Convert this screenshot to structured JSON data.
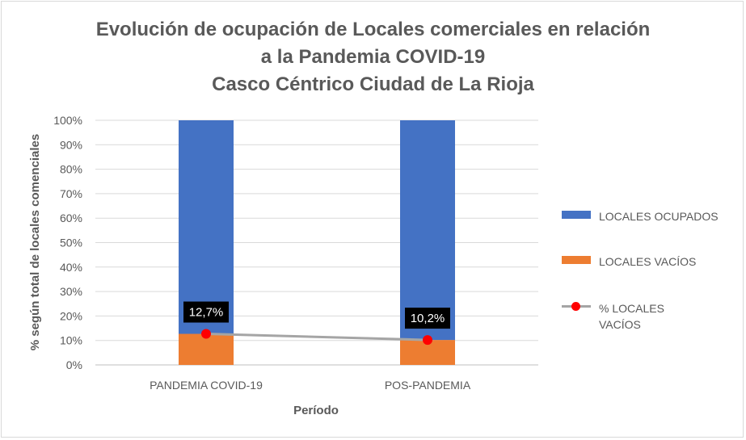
{
  "chart_data": {
    "type": "bar",
    "stacked": true,
    "title_lines": [
      "Evolución de ocupación de Locales comerciales en relación",
      "a la Pandemia COVID-19",
      "Casco Céntrico Ciudad de La Rioja"
    ],
    "xlabel": "Período",
    "ylabel": "% según total de locales comenciales",
    "categories": [
      "PANDEMIA COVID-19",
      "POS-PANDEMIA"
    ],
    "ylim": [
      0,
      100
    ],
    "yticks": [
      "0%",
      "10%",
      "20%",
      "30%",
      "40%",
      "50%",
      "60%",
      "70%",
      "80%",
      "90%",
      "100%"
    ],
    "grid": true,
    "legend_position": "right",
    "series": [
      {
        "name": "LOCALES VACÍOS",
        "kind": "bar",
        "color": "#ed7d31",
        "values": [
          12.7,
          10.2
        ]
      },
      {
        "name": "LOCALES OCUPADOS",
        "kind": "bar",
        "color": "#4472c4",
        "values": [
          87.3,
          89.8
        ]
      },
      {
        "name": "% LOCALES VACÍOS",
        "kind": "line",
        "color": "#a5a5a5",
        "marker_color": "#ff0000",
        "values": [
          12.7,
          10.2
        ],
        "labels": [
          "12,7%",
          "10,2%"
        ]
      }
    ]
  }
}
